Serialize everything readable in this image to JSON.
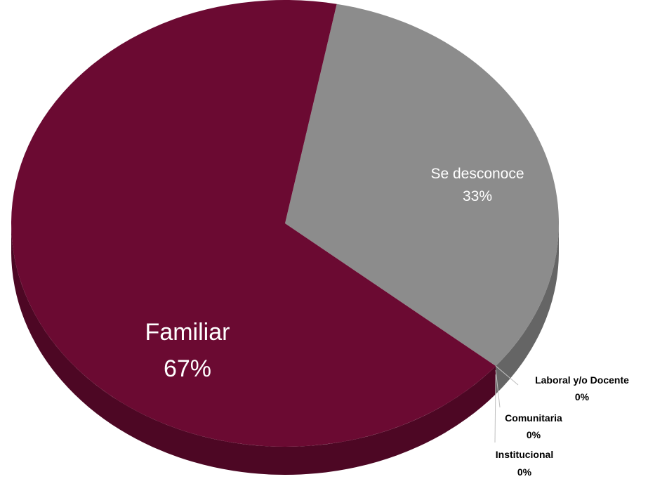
{
  "chart_data": {
    "type": "pie",
    "title": "",
    "slices": [
      {
        "name": "Familiar",
        "value": 67,
        "label": "67%",
        "color": "#6b0a32"
      },
      {
        "name": "Se desconoce",
        "value": 33,
        "label": "33%",
        "color": "#8c8c8c"
      },
      {
        "name": "Laboral y/o Docente",
        "value": 0,
        "label": "0%",
        "color": "#6b0a32"
      },
      {
        "name": "Comunitaria",
        "value": 0,
        "label": "0%",
        "color": "#6b0a32"
      },
      {
        "name": "Institucional",
        "value": 0,
        "label": "0%",
        "color": "#6b0a32"
      }
    ],
    "style": "3d",
    "legend": "none",
    "data_labels": "inside-and-outside"
  }
}
